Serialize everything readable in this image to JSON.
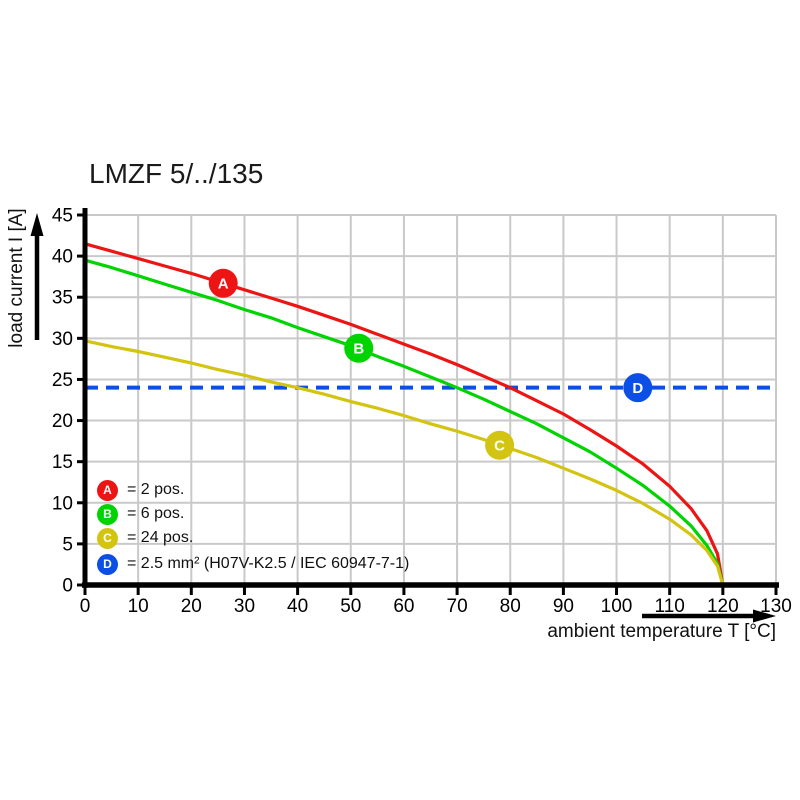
{
  "title": "LMZF 5/../135",
  "axes": {
    "x": {
      "label": "ambient temperature T [°C]",
      "min": 0,
      "max": 130,
      "ticks": [
        0,
        10,
        20,
        30,
        40,
        50,
        60,
        70,
        80,
        90,
        100,
        110,
        120,
        130
      ]
    },
    "y": {
      "label": "load current I [A]",
      "min": 0,
      "max": 45,
      "ticks": [
        0,
        5,
        10,
        15,
        20,
        25,
        30,
        35,
        40,
        45
      ]
    }
  },
  "colors": {
    "red": "#ed1414",
    "green": "#00d400",
    "yellow": "#d3c412",
    "blue": "#0c4fe6",
    "grid": "#c9c9c9",
    "axis": "#000000"
  },
  "legend": {
    "items": [
      {
        "letter": "A",
        "label": "= 2 pos.",
        "color": "#ed1414"
      },
      {
        "letter": "B",
        "label": "= 6 pos.",
        "color": "#00d400"
      },
      {
        "letter": "C",
        "label": "= 24 pos.",
        "color": "#d3c412"
      },
      {
        "letter": "D",
        "label": "= 2.5 mm² (H07V-K2.5 / IEC 60947-7-1)",
        "color": "#0c4fe6"
      }
    ]
  },
  "chart_data": {
    "type": "line",
    "title": "LMZF 5/../135",
    "xlabel": "ambient temperature T [°C]",
    "ylabel": "load current I [A]",
    "xlim": [
      0,
      130
    ],
    "ylim": [
      0,
      45
    ],
    "grid": true,
    "grid_step_x": 10,
    "grid_step_y": 5,
    "x": [
      0,
      5,
      10,
      15,
      20,
      25,
      30,
      35,
      40,
      45,
      50,
      55,
      60,
      65,
      70,
      75,
      80,
      85,
      90,
      95,
      100,
      105,
      110,
      114,
      117,
      119,
      120
    ],
    "series": [
      {
        "name": "A = 2 pos.",
        "color": "#ed1414",
        "values": [
          41.5,
          40.6,
          39.7,
          38.8,
          37.9,
          36.9,
          35.9,
          34.9,
          33.9,
          32.8,
          31.7,
          30.5,
          29.3,
          28.1,
          26.8,
          25.4,
          24.0,
          22.4,
          20.8,
          18.9,
          16.9,
          14.7,
          12.0,
          9.3,
          6.6,
          3.8,
          0
        ]
      },
      {
        "name": "B = 6 pos.",
        "color": "#00d400",
        "values": [
          39.5,
          38.6,
          37.6,
          36.6,
          35.6,
          34.6,
          33.5,
          32.5,
          31.3,
          30.2,
          29.1,
          27.8,
          26.6,
          25.3,
          24.0,
          22.6,
          21.1,
          19.6,
          17.9,
          16.2,
          14.2,
          12.1,
          9.6,
          7.2,
          4.8,
          2.6,
          0
        ]
      },
      {
        "name": "C = 24 pos.",
        "color": "#d3c412",
        "values": [
          29.7,
          29.0,
          28.4,
          27.7,
          27.0,
          26.2,
          25.5,
          24.7,
          24.0,
          23.2,
          22.3,
          21.5,
          20.6,
          19.6,
          18.7,
          17.7,
          16.6,
          15.5,
          14.2,
          12.9,
          11.5,
          9.9,
          8.0,
          6.1,
          4.2,
          2.3,
          0
        ]
      }
    ],
    "reference_line": {
      "name": "D = 2.5 mm² (H07V-K2.5 / IEC 60947-7-1)",
      "y": 24,
      "style": "dashed",
      "color": "#0c4fe6",
      "x_start": 0,
      "x_end": 130
    },
    "markers": [
      {
        "letter": "A",
        "x": 26,
        "y": 36.7,
        "color": "#ed1414"
      },
      {
        "letter": "B",
        "x": 51.5,
        "y": 28.8,
        "color": "#00d400"
      },
      {
        "letter": "C",
        "x": 78,
        "y": 17.0,
        "color": "#d3c412"
      },
      {
        "letter": "D",
        "x": 104,
        "y": 24.0,
        "color": "#0c4fe6"
      }
    ]
  }
}
